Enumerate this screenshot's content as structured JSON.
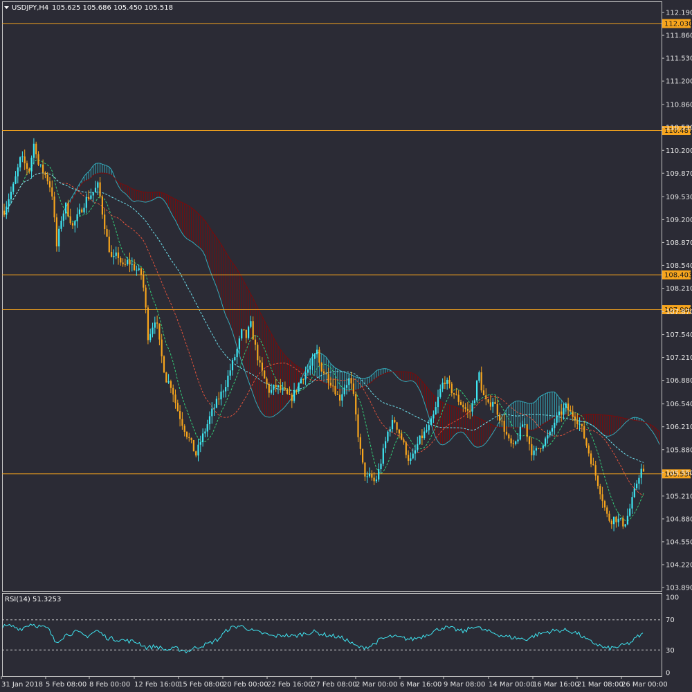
{
  "header": {
    "symbol": "USDJPY,H4",
    "ohlc": "105.625 105.686 105.450 105.518"
  },
  "rsi_panel": {
    "title": "RSI(14) 51.3253",
    "levels": [
      "100",
      "70",
      "30",
      "0"
    ]
  },
  "colors": {
    "background": "#2b2b35",
    "bull": "#3fe6f2",
    "bear": "#f7a51d",
    "hline": "#f7a51d",
    "label_bg": "#f7a51d",
    "kumo_bear": "#7a0b0b",
    "kumo_bull": "#33a8b8",
    "rsi": "#3fe6f2"
  },
  "chart_data": [
    {
      "type": "candlestick",
      "title": "USDJPY,H4",
      "y_ticks": [
        "112.190",
        "111.860",
        "111.530",
        "111.200",
        "110.860",
        "110.530",
        "110.200",
        "109.870",
        "109.530",
        "109.200",
        "108.870",
        "108.540",
        "108.210",
        "107.870",
        "107.540",
        "107.210",
        "106.880",
        "106.540",
        "106.210",
        "105.880",
        "105.550",
        "105.210",
        "104.880",
        "104.550",
        "104.220",
        "103.890"
      ],
      "ylim": [
        103.84,
        112.34
      ],
      "x_tick_labels": [
        "31 Jan 2018",
        "5 Feb 08:00",
        "8 Feb 00:00",
        "12 Feb 16:00",
        "15 Feb 08:00",
        "20 Feb 00:00",
        "22 Feb 16:00",
        "27 Feb 08:00",
        "2 Mar 00:00",
        "6 Mar 16:00",
        "9 Mar 08:00",
        "14 Mar 00:00",
        "16 Mar 16:00",
        "21 Mar 08:00",
        "26 Mar 00:00"
      ],
      "horizontal_levels": [
        "112.030",
        "110.487",
        "108.403",
        "107.900",
        "105.530"
      ],
      "price_path": [
        [
          0,
          108.9
        ],
        [
          5,
          109.3
        ],
        [
          12,
          109.5
        ],
        [
          20,
          109.7
        ],
        [
          30,
          110.1
        ],
        [
          42,
          109.9
        ],
        [
          50,
          110.35
        ],
        [
          55,
          110.0
        ],
        [
          62,
          109.9
        ],
        [
          68,
          109.8
        ],
        [
          75,
          109.6
        ],
        [
          82,
          108.8
        ],
        [
          88,
          109.2
        ],
        [
          95,
          109.4
        ],
        [
          105,
          109.1
        ],
        [
          115,
          109.3
        ],
        [
          125,
          109.5
        ],
        [
          135,
          109.6
        ],
        [
          142,
          109.7
        ],
        [
          148,
          109.3
        ],
        [
          155,
          108.9
        ],
        [
          162,
          108.6
        ],
        [
          170,
          108.7
        ],
        [
          178,
          108.5
        ],
        [
          185,
          108.6
        ],
        [
          195,
          108.5
        ],
        [
          205,
          108.4
        ],
        [
          210,
          108.0
        ],
        [
          213,
          107.5
        ],
        [
          218,
          107.6
        ],
        [
          225,
          107.8
        ],
        [
          232,
          107.3
        ],
        [
          240,
          106.9
        ],
        [
          248,
          106.8
        ],
        [
          255,
          106.5
        ],
        [
          262,
          106.3
        ],
        [
          270,
          106.1
        ],
        [
          277,
          105.95
        ],
        [
          283,
          105.8
        ],
        [
          290,
          106.0
        ],
        [
          298,
          106.2
        ],
        [
          305,
          106.4
        ],
        [
          315,
          106.6
        ],
        [
          325,
          106.8
        ],
        [
          335,
          107.1
        ],
        [
          342,
          107.3
        ],
        [
          350,
          107.6
        ],
        [
          356,
          107.5
        ],
        [
          362,
          107.7
        ],
        [
          368,
          107.4
        ],
        [
          375,
          107.1
        ],
        [
          382,
          106.9
        ],
        [
          390,
          106.7
        ],
        [
          398,
          106.8
        ],
        [
          405,
          106.75
        ],
        [
          412,
          106.7
        ],
        [
          420,
          106.6
        ],
        [
          428,
          106.75
        ],
        [
          435,
          106.9
        ],
        [
          442,
          107.0
        ],
        [
          450,
          107.1
        ],
        [
          458,
          107.3
        ],
        [
          462,
          107.1
        ],
        [
          468,
          107.0
        ],
        [
          475,
          106.9
        ],
        [
          482,
          106.8
        ],
        [
          490,
          106.6
        ],
        [
          498,
          106.8
        ],
        [
          505,
          106.9
        ],
        [
          510,
          106.7
        ],
        [
          515,
          106.3
        ],
        [
          520,
          105.9
        ],
        [
          525,
          105.6
        ],
        [
          530,
          105.45
        ],
        [
          535,
          105.5
        ],
        [
          542,
          105.4
        ],
        [
          548,
          105.6
        ],
        [
          555,
          105.9
        ],
        [
          562,
          106.2
        ],
        [
          570,
          106.3
        ],
        [
          578,
          106.1
        ],
        [
          585,
          105.9
        ],
        [
          592,
          105.7
        ],
        [
          598,
          105.8
        ],
        [
          605,
          106.0
        ],
        [
          612,
          106.1
        ],
        [
          620,
          106.2
        ],
        [
          628,
          106.4
        ],
        [
          635,
          106.7
        ],
        [
          642,
          106.9
        ],
        [
          648,
          106.8
        ],
        [
          655,
          106.7
        ],
        [
          662,
          106.6
        ],
        [
          670,
          106.5
        ],
        [
          678,
          106.4
        ],
        [
          685,
          106.6
        ],
        [
          692,
          107.0
        ],
        [
          697,
          106.7
        ],
        [
          705,
          106.5
        ],
        [
          712,
          106.6
        ],
        [
          720,
          106.4
        ],
        [
          728,
          106.2
        ],
        [
          735,
          106.0
        ],
        [
          742,
          105.9
        ],
        [
          750,
          106.1
        ],
        [
          757,
          106.3
        ],
        [
          764,
          106.0
        ],
        [
          770,
          105.8
        ],
        [
          778,
          105.9
        ],
        [
          786,
          106.0
        ],
        [
          795,
          106.1
        ],
        [
          802,
          106.3
        ],
        [
          810,
          106.4
        ],
        [
          818,
          106.5
        ],
        [
          825,
          106.4
        ],
        [
          832,
          106.35
        ],
        [
          840,
          106.2
        ],
        [
          846,
          106.0
        ],
        [
          852,
          105.8
        ],
        [
          858,
          105.6
        ],
        [
          864,
          105.4
        ],
        [
          870,
          105.2
        ],
        [
          876,
          104.95
        ],
        [
          882,
          104.85
        ],
        [
          888,
          104.9
        ],
        [
          895,
          104.85
        ],
        [
          902,
          104.8
        ],
        [
          908,
          104.95
        ],
        [
          915,
          105.2
        ],
        [
          920,
          105.4
        ],
        [
          926,
          105.6
        ],
        [
          930,
          105.52
        ]
      ]
    },
    {
      "type": "line",
      "title": "RSI(14) 51.3253",
      "ylim": [
        0,
        100
      ],
      "levels": [
        30,
        70
      ],
      "series": [
        {
          "values": [
            [
              0,
              60
            ],
            [
              15,
              62
            ],
            [
              30,
              58
            ],
            [
              45,
              65
            ],
            [
              55,
              62
            ],
            [
              70,
              58
            ],
            [
              80,
              40
            ],
            [
              95,
              50
            ],
            [
              110,
              54
            ],
            [
              125,
              48
            ],
            [
              140,
              56
            ],
            [
              155,
              46
            ],
            [
              170,
              44
            ],
            [
              185,
              42
            ],
            [
              200,
              40
            ],
            [
              212,
              33
            ],
            [
              225,
              35
            ],
            [
              240,
              30
            ],
            [
              255,
              32
            ],
            [
              270,
              28
            ],
            [
              285,
              34
            ],
            [
              300,
              38
            ],
            [
              315,
              44
            ],
            [
              330,
              58
            ],
            [
              345,
              62
            ],
            [
              355,
              60
            ],
            [
              365,
              55
            ],
            [
              380,
              52
            ],
            [
              395,
              48
            ],
            [
              410,
              50
            ],
            [
              425,
              48
            ],
            [
              440,
              52
            ],
            [
              455,
              54
            ],
            [
              470,
              50
            ],
            [
              485,
              48
            ],
            [
              500,
              44
            ],
            [
              512,
              36
            ],
            [
              522,
              33
            ],
            [
              535,
              35
            ],
            [
              550,
              44
            ],
            [
              565,
              48
            ],
            [
              580,
              46
            ],
            [
              595,
              44
            ],
            [
              610,
              48
            ],
            [
              625,
              54
            ],
            [
              640,
              60
            ],
            [
              655,
              58
            ],
            [
              670,
              54
            ],
            [
              685,
              62
            ],
            [
              700,
              56
            ],
            [
              715,
              52
            ],
            [
              730,
              48
            ],
            [
              745,
              46
            ],
            [
              760,
              44
            ],
            [
              775,
              50
            ],
            [
              790,
              54
            ],
            [
              805,
              56
            ],
            [
              820,
              56
            ],
            [
              835,
              52
            ],
            [
              850,
              42
            ],
            [
              862,
              38
            ],
            [
              875,
              32
            ],
            [
              888,
              33
            ],
            [
              900,
              36
            ],
            [
              912,
              40
            ],
            [
              922,
              48
            ],
            [
              930,
              51
            ]
          ]
        }
      ]
    }
  ]
}
